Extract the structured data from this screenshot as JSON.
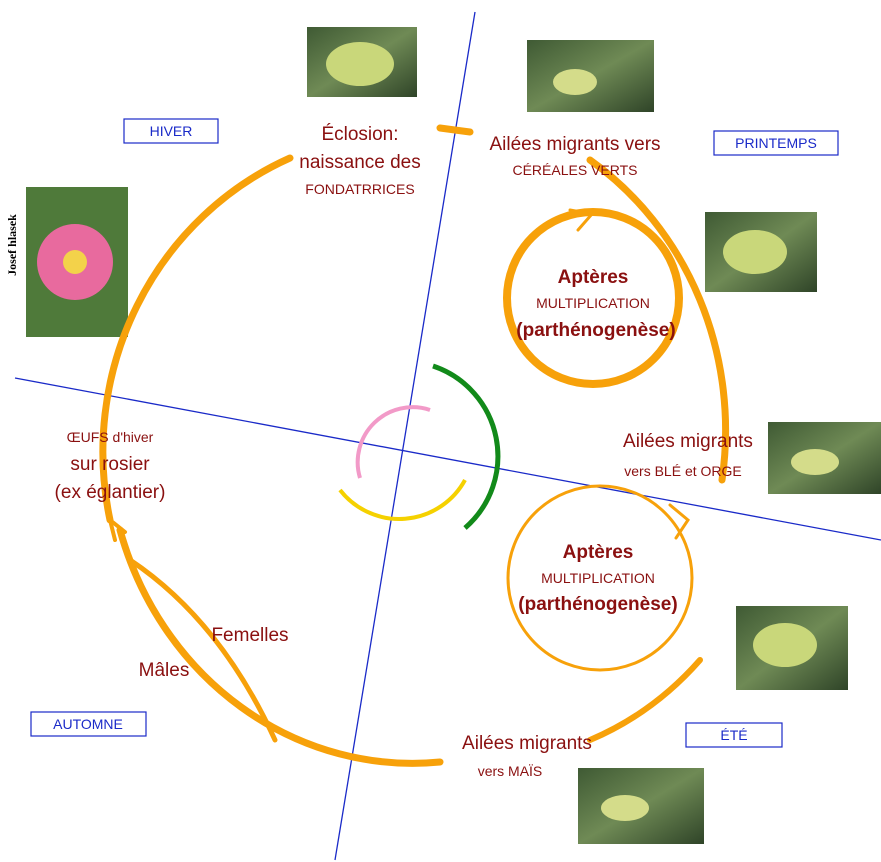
{
  "seasons": {
    "winter": "HIVER",
    "spring": "PRINTEMPS",
    "summer": "ÉTÉ",
    "autumn": "AUTOMNE"
  },
  "hatching": {
    "lines": [
      "Éclosion:",
      "naissance des",
      "FONDATRRICES"
    ]
  },
  "spring_migrants": {
    "lines": [
      "Ailées migrants vers",
      "CÉRÉALES VERTS"
    ]
  },
  "apterous_1": {
    "lines": [
      "Aptères",
      "MULTIPLICATION",
      "(parthénogenèse)"
    ]
  },
  "summer_migrants": {
    "lines": [
      "Ailées migrants",
      "vers BLÉ et ORGE"
    ]
  },
  "apterous_2": {
    "lines": [
      "Aptères",
      "MULTIPLICATION",
      "(parthénogenèse)"
    ]
  },
  "autumn_migrants": {
    "lines": [
      "Ailées migrants",
      "vers MAÏS"
    ]
  },
  "eggs": {
    "lines": [
      "ŒUFS d'hiver",
      "sur rosier",
      "(ex églantier)"
    ]
  },
  "females": "Femelles",
  "males": "Mâles",
  "photo_credit": "Josef hlasek"
}
